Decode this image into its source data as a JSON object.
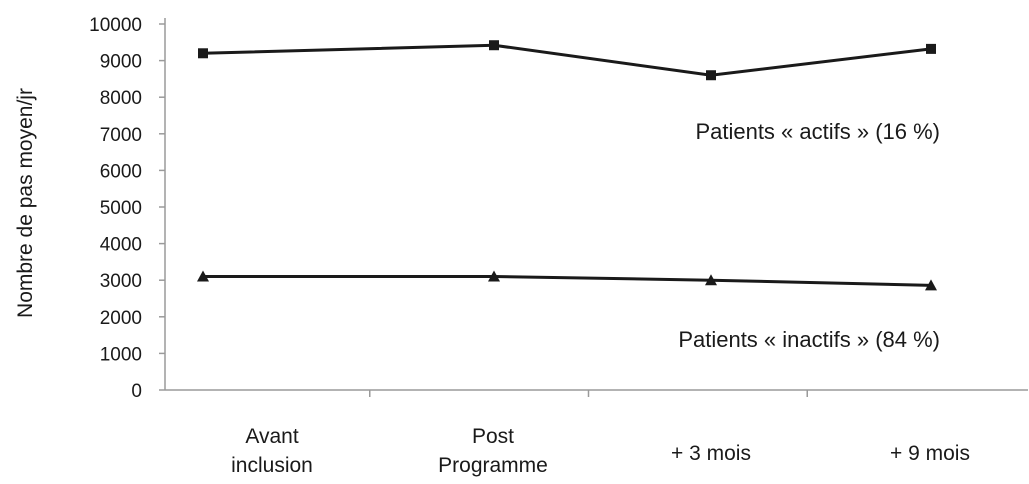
{
  "chart_data": {
    "type": "line",
    "title": "",
    "ylabel": "Nombre de pas moyen/jr",
    "xlabel": "",
    "ylim": [
      0,
      10000
    ],
    "yticks": [
      0,
      1000,
      2000,
      3000,
      4000,
      5000,
      6000,
      7000,
      8000,
      9000,
      10000
    ],
    "categories": [
      [
        "Avant",
        "inclusion"
      ],
      [
        "Post",
        "Programme"
      ],
      [
        "+ 3 mois"
      ],
      [
        "+ 9 mois"
      ]
    ],
    "series": [
      {
        "name": "Patients « actifs » (16 %)",
        "values": [
          9200,
          9420,
          8600,
          9320
        ],
        "marker": "square"
      },
      {
        "name": "Patients « inactifs » (84 %)",
        "values": [
          3100,
          3100,
          3000,
          2860
        ],
        "marker": "triangle"
      }
    ],
    "grid": false,
    "legend": "inline-annotations",
    "colors": {
      "line": "#1a1a1a",
      "axis": "#9a9a9a"
    }
  }
}
